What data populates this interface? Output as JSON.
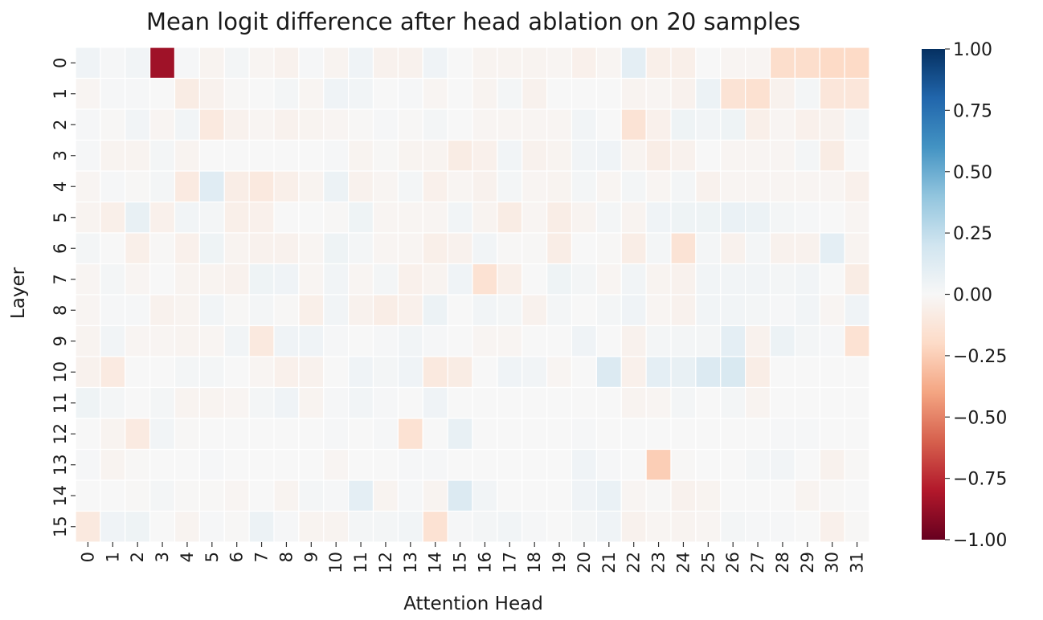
{
  "chart_data": {
    "type": "heatmap",
    "title": "Mean logit difference after head ablation on 20 samples",
    "xlabel": "Attention Head",
    "ylabel": "Layer",
    "x_ticks": [
      "0",
      "1",
      "2",
      "3",
      "4",
      "5",
      "6",
      "7",
      "8",
      "9",
      "10",
      "11",
      "12",
      "13",
      "14",
      "15",
      "16",
      "17",
      "18",
      "19",
      "20",
      "21",
      "22",
      "23",
      "24",
      "25",
      "26",
      "27",
      "28",
      "29",
      "30",
      "31"
    ],
    "y_ticks": [
      "0",
      "1",
      "2",
      "3",
      "4",
      "5",
      "6",
      "7",
      "8",
      "9",
      "10",
      "11",
      "12",
      "13",
      "14",
      "15"
    ],
    "colormap": "RdBu",
    "vmin": -1.0,
    "vmax": 1.0,
    "colorbar_ticks": [
      "1.00",
      "0.75",
      "0.50",
      "0.25",
      "0.00",
      "−0.25",
      "−0.50",
      "−0.75",
      "−1.00"
    ],
    "colorbar_tick_values": [
      1.0,
      0.75,
      0.5,
      0.25,
      0.0,
      -0.25,
      -0.5,
      -0.75,
      -1.0
    ],
    "values": [
      [
        0.04,
        0.01,
        0.03,
        -0.85,
        0.01,
        -0.03,
        0.02,
        -0.02,
        -0.04,
        0.01,
        -0.03,
        0.04,
        -0.04,
        -0.04,
        0.04,
        0.0,
        -0.03,
        -0.03,
        -0.03,
        -0.02,
        -0.05,
        -0.02,
        0.1,
        -0.06,
        -0.06,
        0.0,
        -0.02,
        -0.02,
        -0.18,
        -0.18,
        -0.2,
        -0.2
      ],
      [
        -0.02,
        0.01,
        0.01,
        0.0,
        -0.08,
        -0.04,
        -0.01,
        0.0,
        0.02,
        -0.02,
        0.04,
        0.03,
        0.0,
        0.01,
        -0.02,
        0.0,
        -0.03,
        0.02,
        -0.04,
        0.0,
        0.0,
        0.0,
        -0.03,
        -0.02,
        -0.04,
        0.06,
        -0.14,
        -0.16,
        -0.04,
        0.02,
        -0.12,
        -0.12
      ],
      [
        0.01,
        -0.01,
        0.03,
        -0.02,
        0.03,
        -0.1,
        -0.04,
        -0.02,
        -0.04,
        -0.03,
        -0.02,
        -0.01,
        0.01,
        -0.01,
        0.02,
        0.0,
        -0.02,
        -0.02,
        -0.02,
        -0.02,
        0.03,
        0.0,
        -0.14,
        -0.05,
        0.05,
        0.03,
        0.05,
        -0.06,
        -0.02,
        -0.05,
        -0.04,
        0.02
      ],
      [
        0.01,
        -0.03,
        -0.03,
        0.02,
        -0.03,
        0.0,
        0.0,
        0.0,
        0.0,
        0.0,
        0.01,
        -0.03,
        -0.01,
        -0.03,
        -0.03,
        -0.08,
        -0.05,
        0.03,
        -0.04,
        -0.03,
        0.03,
        0.04,
        -0.03,
        -0.07,
        -0.04,
        0.0,
        -0.02,
        -0.02,
        -0.02,
        0.02,
        -0.08,
        0.0
      ],
      [
        -0.02,
        0.01,
        -0.01,
        0.02,
        -0.09,
        0.12,
        -0.07,
        -0.1,
        -0.06,
        -0.03,
        0.06,
        -0.04,
        -0.02,
        0.02,
        -0.05,
        -0.02,
        -0.04,
        0.02,
        -0.02,
        -0.03,
        0.02,
        -0.02,
        0.02,
        -0.02,
        0.02,
        -0.04,
        -0.02,
        -0.02,
        -0.02,
        -0.02,
        -0.02,
        -0.05
      ],
      [
        -0.03,
        -0.06,
        0.08,
        -0.05,
        0.03,
        0.02,
        -0.06,
        -0.05,
        0.0,
        0.0,
        -0.01,
        0.05,
        -0.02,
        -0.02,
        -0.02,
        0.03,
        -0.03,
        -0.08,
        -0.02,
        -0.07,
        -0.03,
        0.02,
        -0.03,
        0.04,
        0.05,
        0.05,
        0.07,
        0.06,
        0.02,
        0.01,
        0.0,
        -0.02
      ],
      [
        0.02,
        0.0,
        -0.06,
        -0.01,
        -0.05,
        0.05,
        -0.03,
        -0.04,
        -0.04,
        -0.02,
        0.05,
        0.02,
        -0.02,
        -0.02,
        -0.06,
        -0.04,
        0.03,
        -0.01,
        -0.01,
        -0.07,
        0.0,
        -0.01,
        -0.07,
        0.02,
        -0.14,
        0.02,
        -0.04,
        0.02,
        -0.04,
        -0.04,
        0.1,
        -0.03
      ],
      [
        -0.02,
        0.02,
        -0.02,
        0.0,
        -0.03,
        -0.03,
        -0.04,
        0.05,
        0.04,
        -0.02,
        0.03,
        -0.02,
        0.02,
        -0.05,
        -0.03,
        0.04,
        -0.15,
        -0.06,
        0.0,
        0.05,
        0.02,
        -0.02,
        0.03,
        -0.03,
        -0.04,
        0.03,
        0.03,
        0.03,
        0.02,
        0.03,
        0.0,
        -0.08
      ],
      [
        -0.02,
        0.01,
        0.01,
        -0.04,
        -0.03,
        0.03,
        -0.01,
        0.02,
        -0.01,
        -0.06,
        0.03,
        -0.04,
        -0.07,
        -0.05,
        0.06,
        0.0,
        0.03,
        0.02,
        -0.04,
        0.02,
        0.0,
        0.02,
        0.04,
        -0.02,
        -0.04,
        0.03,
        0.03,
        0.02,
        0.01,
        0.03,
        -0.02,
        0.04
      ],
      [
        -0.03,
        0.03,
        -0.02,
        -0.02,
        -0.03,
        -0.02,
        0.03,
        -0.1,
        0.04,
        0.04,
        0.01,
        0.0,
        0.01,
        0.03,
        0.01,
        0.0,
        -0.02,
        -0.02,
        0.0,
        0.0,
        0.04,
        0.0,
        -0.04,
        0.02,
        0.02,
        0.02,
        0.1,
        -0.04,
        0.06,
        0.02,
        0.01,
        -0.15
      ],
      [
        -0.04,
        -0.09,
        0.0,
        0.0,
        0.02,
        0.02,
        0.0,
        -0.02,
        -0.05,
        -0.04,
        0.0,
        0.04,
        0.02,
        0.04,
        -0.1,
        -0.08,
        0.0,
        0.04,
        0.03,
        -0.02,
        0.0,
        0.14,
        -0.05,
        0.1,
        0.08,
        0.14,
        0.16,
        -0.07,
        0.0,
        0.0,
        0.0,
        0.0
      ],
      [
        0.05,
        0.02,
        0.0,
        0.02,
        -0.03,
        -0.03,
        -0.02,
        0.02,
        0.04,
        -0.03,
        0.01,
        0.03,
        0.01,
        0.0,
        0.04,
        0.0,
        0.0,
        0.0,
        0.0,
        0.0,
        0.0,
        0.0,
        -0.03,
        -0.02,
        0.02,
        0.0,
        0.02,
        -0.03,
        0.0,
        0.0,
        0.0,
        0.0
      ],
      [
        0.0,
        -0.03,
        -0.09,
        0.03,
        -0.01,
        0.0,
        0.0,
        0.0,
        0.0,
        0.0,
        0.01,
        0.0,
        0.01,
        -0.15,
        0.0,
        0.08,
        0.0,
        0.0,
        0.0,
        0.0,
        0.01,
        0.0,
        0.0,
        0.0,
        0.0,
        0.0,
        0.0,
        0.0,
        0.01,
        0.01,
        0.0,
        0.0
      ],
      [
        0.01,
        -0.03,
        -0.01,
        0.0,
        0.0,
        0.01,
        0.0,
        0.0,
        0.0,
        0.0,
        -0.02,
        0.0,
        0.0,
        0.01,
        0.01,
        0.0,
        0.0,
        0.0,
        0.0,
        0.0,
        0.04,
        0.01,
        0.0,
        -0.25,
        -0.01,
        0.0,
        0.0,
        0.02,
        0.03,
        0.0,
        -0.04,
        -0.01
      ],
      [
        0.0,
        0.0,
        -0.01,
        0.02,
        -0.01,
        -0.01,
        -0.02,
        0.0,
        -0.03,
        0.02,
        0.01,
        0.1,
        -0.03,
        0.01,
        -0.03,
        0.14,
        0.03,
        0.0,
        0.0,
        0.0,
        0.04,
        0.07,
        -0.02,
        -0.01,
        -0.04,
        -0.03,
        0.0,
        0.0,
        0.0,
        -0.03,
        -0.01,
        0.0
      ],
      [
        -0.1,
        0.04,
        0.05,
        0.0,
        -0.03,
        0.01,
        -0.01,
        0.06,
        0.01,
        -0.03,
        -0.03,
        0.02,
        0.02,
        0.03,
        -0.15,
        0.01,
        0.02,
        0.03,
        0.01,
        0.0,
        0.02,
        0.04,
        -0.04,
        -0.02,
        -0.03,
        -0.02,
        0.02,
        0.01,
        0.01,
        0.0,
        -0.05,
        -0.01
      ]
    ]
  }
}
